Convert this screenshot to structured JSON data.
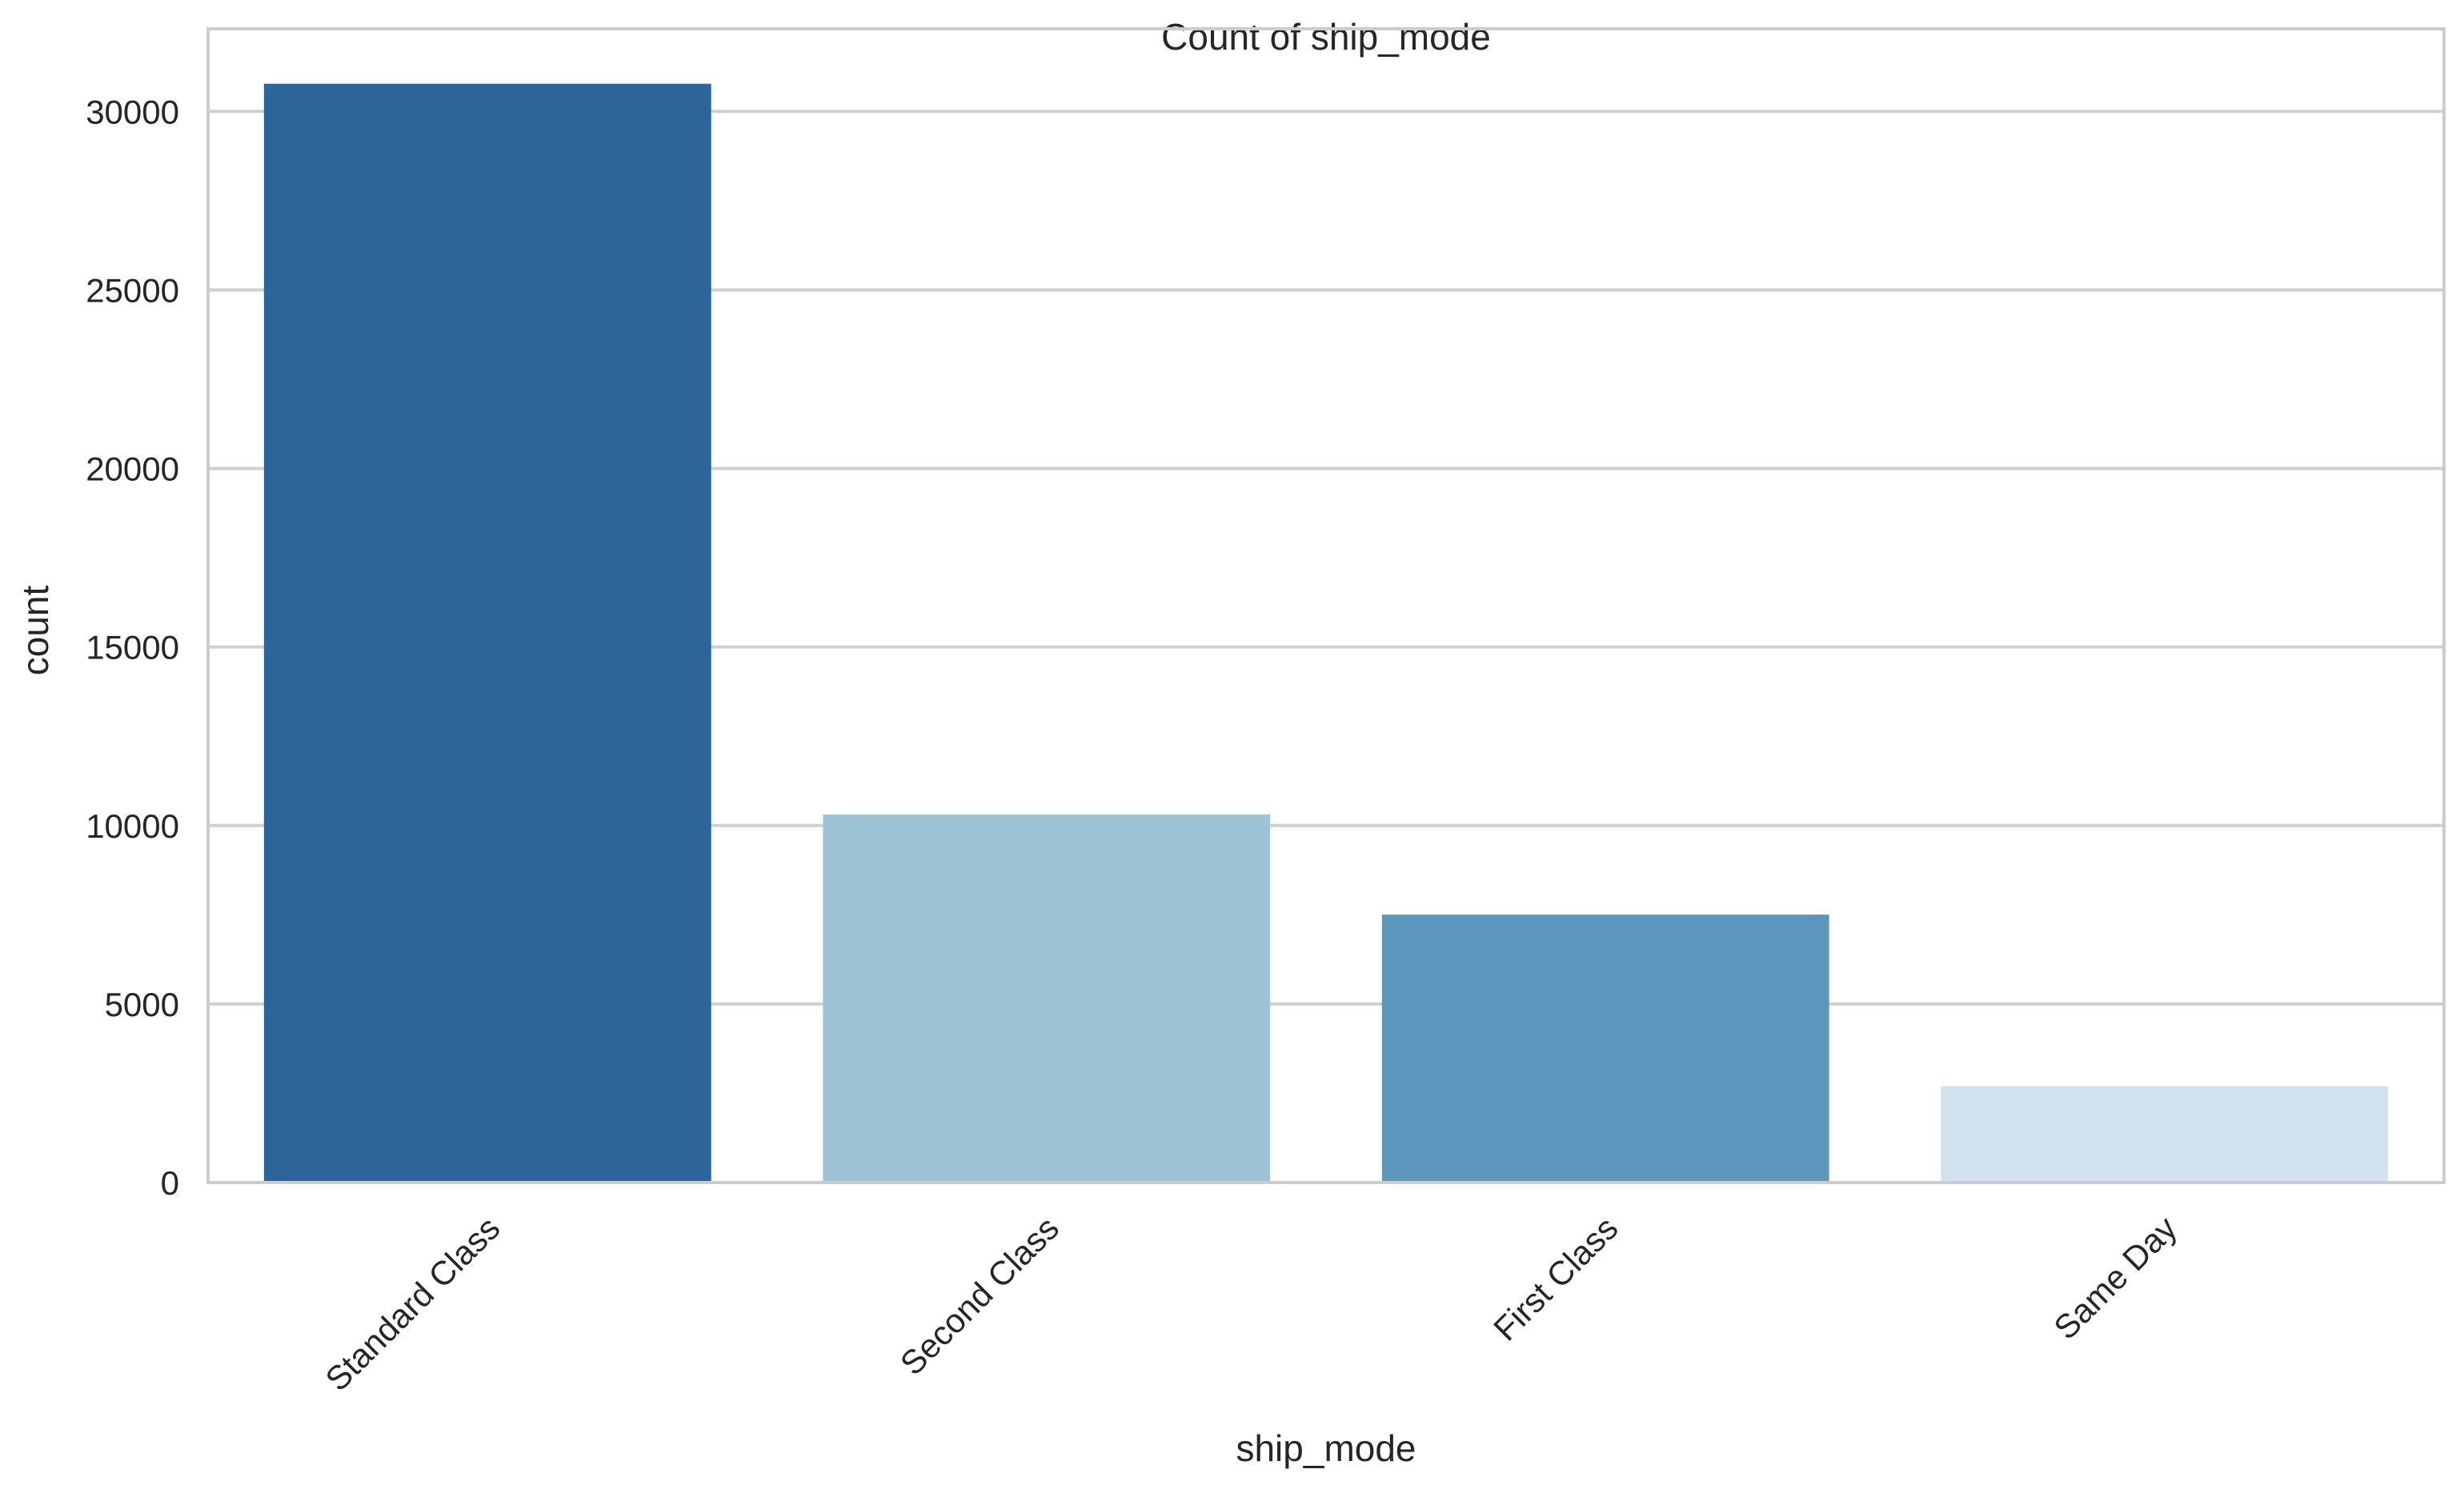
{
  "chart_data": {
    "type": "bar",
    "title": "Count of ship_mode",
    "xlabel": "ship_mode",
    "ylabel": "count",
    "categories": [
      "Standard Class",
      "Second Class",
      "First Class",
      "Same Day"
    ],
    "values": [
      30775,
      10309,
      7505,
      2701
    ],
    "colors": [
      "#2b6599",
      "#9fc3d6",
      "#5b96bc",
      "#d1e1ef"
    ],
    "ylim": [
      0,
      32314
    ],
    "yticks": [
      0,
      5000,
      10000,
      15000,
      20000,
      25000,
      30000
    ],
    "xtick_rotation": 45,
    "grid": "horizontal"
  }
}
